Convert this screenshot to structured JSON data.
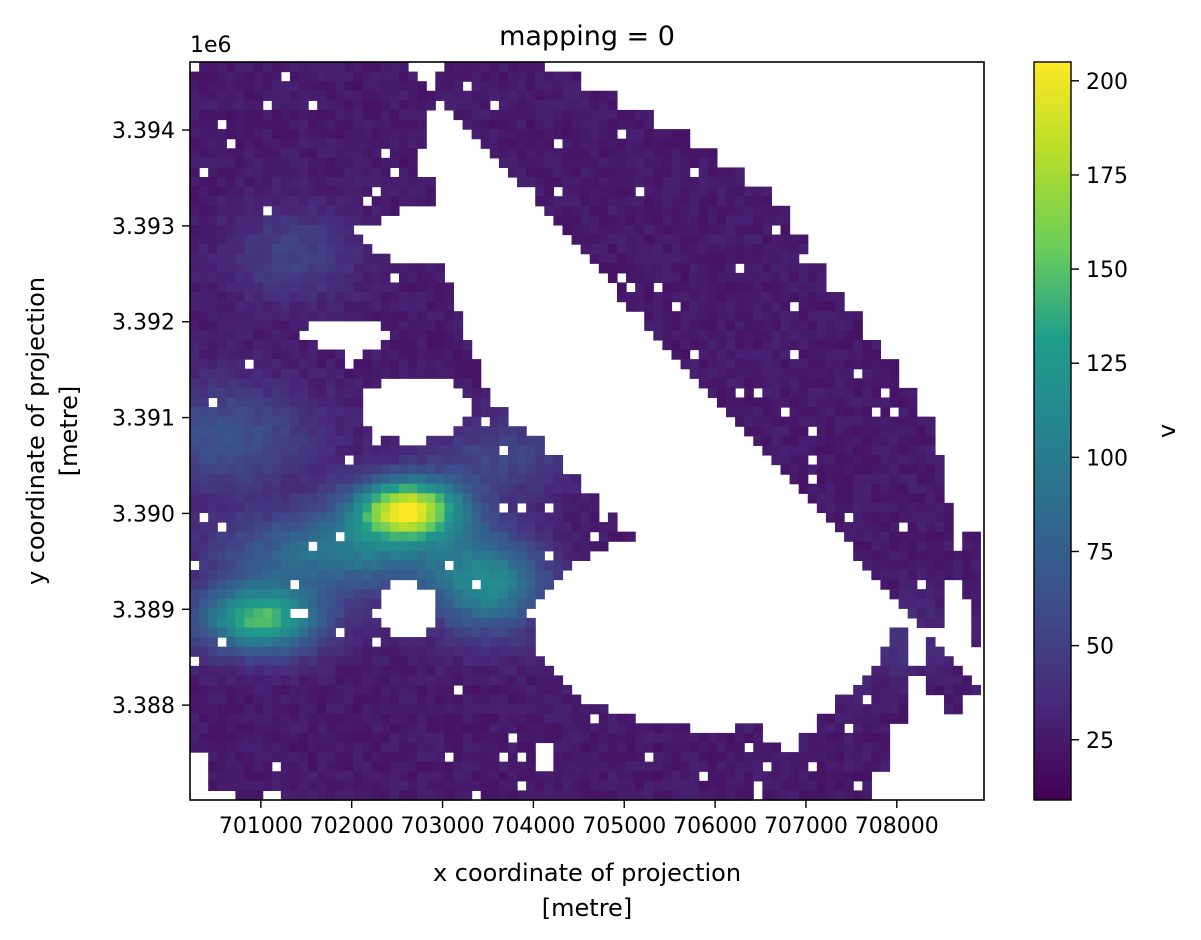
{
  "chart_data": {
    "type": "heatmap",
    "title": "mapping = 0",
    "xlabel_lines": [
      "x coordinate of projection",
      "[metre]"
    ],
    "ylabel_lines": [
      "y coordinate of projection",
      "[metre]"
    ],
    "y_offset_label": "1e6",
    "colorbar_label": "v",
    "colormap": "viridis",
    "colormap_stops": [
      "#440154",
      "#482777",
      "#3f4a8a",
      "#31678e",
      "#26838f",
      "#1f9d8a",
      "#6cce5a",
      "#b6de2b",
      "#fee825"
    ],
    "x_ticks": [
      {
        "value": 701000,
        "label": "701000"
      },
      {
        "value": 702000,
        "label": "702000"
      },
      {
        "value": 703000,
        "label": "703000"
      },
      {
        "value": 704000,
        "label": "704000"
      },
      {
        "value": 705000,
        "label": "705000"
      },
      {
        "value": 706000,
        "label": "706000"
      },
      {
        "value": 707000,
        "label": "707000"
      },
      {
        "value": 708000,
        "label": "708000"
      }
    ],
    "y_ticks": [
      {
        "value": 3.388,
        "label": "3.388"
      },
      {
        "value": 3.389,
        "label": "3.389"
      },
      {
        "value": 3.39,
        "label": "3.390"
      },
      {
        "value": 3.391,
        "label": "3.391"
      },
      {
        "value": 3.392,
        "label": "3.392"
      },
      {
        "value": 3.393,
        "label": "3.393"
      },
      {
        "value": 3.394,
        "label": "3.394"
      }
    ],
    "colorbar_ticks": [
      {
        "value": 25,
        "label": "25"
      },
      {
        "value": 50,
        "label": "50"
      },
      {
        "value": 75,
        "label": "75"
      },
      {
        "value": 100,
        "label": "100"
      },
      {
        "value": 125,
        "label": "125"
      },
      {
        "value": 150,
        "label": "150"
      },
      {
        "value": 175,
        "label": "175"
      },
      {
        "value": 200,
        "label": "200"
      }
    ],
    "xlim": [
      700220,
      708960
    ],
    "ylim": [
      3.38701,
      3.39471
    ],
    "vlim": [
      9,
      205
    ],
    "grid": false,
    "cell_x": [
      700270,
      700370,
      700470,
      700570,
      700670,
      700770,
      700870,
      700970,
      701070,
      701170,
      701270,
      701370,
      701470,
      701570,
      701670,
      701770,
      701870,
      701970,
      702070,
      702170,
      702270,
      702370,
      702470,
      702570,
      702670,
      702770,
      702870,
      702970,
      703070,
      703170,
      703270,
      703370,
      703470,
      703570,
      703670,
      703770,
      703870,
      703970,
      704070,
      704170,
      704270,
      704370,
      704470,
      704570,
      704670,
      704770,
      704870,
      704970,
      705070,
      705170,
      705270,
      705370,
      705470,
      705570,
      705670,
      705770,
      705870,
      705970,
      706070,
      706170,
      706270,
      706370,
      706470,
      706570,
      706670,
      706770,
      706870,
      706970,
      707070,
      707170,
      707270,
      707370,
      707470,
      707570,
      707670,
      707770,
      707870,
      707970,
      708070,
      708170,
      708270,
      708370,
      708470,
      708570,
      708670,
      708770,
      708870
    ],
    "cell_y": [
      3.39466,
      3.39456,
      3.39446,
      3.39436,
      3.39426,
      3.39416,
      3.39406,
      3.39396,
      3.39386,
      3.39376,
      3.39366,
      3.39356,
      3.39346,
      3.39336,
      3.39326,
      3.39316,
      3.39306,
      3.39296,
      3.39286,
      3.39276,
      3.39266,
      3.39256,
      3.39246,
      3.39236,
      3.39226,
      3.39216,
      3.39206,
      3.39196,
      3.39186,
      3.39176,
      3.39166,
      3.39156,
      3.39146,
      3.39136,
      3.39126,
      3.39116,
      3.39106,
      3.39096,
      3.39086,
      3.39076,
      3.39066,
      3.39056,
      3.39046,
      3.39036,
      3.39026,
      3.39016,
      3.39006,
      3.38996,
      3.38986,
      3.38976,
      3.38966,
      3.38956,
      3.38946,
      3.38936,
      3.38926,
      3.38916,
      3.38906,
      3.38896,
      3.38886,
      3.38876,
      3.38866,
      3.38856,
      3.38846,
      3.38836,
      3.38826,
      3.38816,
      3.38806,
      3.38796,
      3.38786,
      3.38776,
      3.38766,
      3.38756,
      3.38746,
      3.38736,
      3.38726,
      3.38716,
      3.38706
    ],
    "region_polygon": [
      [
        702610,
        3.39471
      ],
      [
        702960,
        3.39471
      ],
      [
        702960,
        3.39426
      ],
      [
        702860,
        3.39426
      ],
      [
        702860,
        3.39386
      ],
      [
        702760,
        3.39386
      ],
      [
        702760,
        3.39351
      ],
      [
        702960,
        3.39351
      ],
      [
        702960,
        3.39326
      ],
      [
        702860,
        3.39326
      ],
      [
        702860,
        3.39301
      ],
      [
        702960,
        3.39301
      ],
      [
        702960,
        3.39281
      ],
      [
        703060,
        3.39281
      ],
      [
        703060,
        3.39246
      ],
      [
        703160,
        3.39246
      ],
      [
        703160,
        3.39211
      ],
      [
        703260,
        3.39211
      ],
      [
        703260,
        3.39186
      ],
      [
        703360,
        3.39186
      ],
      [
        703360,
        3.39161
      ],
      [
        703460,
        3.39161
      ],
      [
        703460,
        3.39136
      ],
      [
        703560,
        3.39136
      ],
      [
        703560,
        3.39111
      ],
      [
        703760,
        3.39111
      ],
      [
        703760,
        3.39096
      ],
      [
        703960,
        3.39096
      ],
      [
        703960,
        3.39081
      ],
      [
        704160,
        3.39081
      ],
      [
        704160,
        3.39061
      ],
      [
        704360,
        3.39061
      ],
      [
        704360,
        3.39041
      ],
      [
        704560,
        3.39041
      ],
      [
        704560,
        3.39021
      ],
      [
        704760,
        3.39021
      ],
      [
        704760,
        3.39001
      ],
      [
        704960,
        3.39001
      ],
      [
        704960,
        3.38981
      ],
      [
        705160,
        3.38981
      ],
      [
        705160,
        3.38951
      ],
      [
        705360,
        3.38951
      ],
      [
        705360,
        3.38921
      ],
      [
        705560,
        3.38921
      ],
      [
        705560,
        3.38891
      ],
      [
        705760,
        3.38891
      ],
      [
        705760,
        3.38861
      ],
      [
        705960,
        3.38861
      ],
      [
        705960,
        3.38831
      ],
      [
        706160,
        3.38831
      ],
      [
        706160,
        3.38801
      ],
      [
        706360,
        3.38801
      ],
      [
        706360,
        3.38781
      ],
      [
        706560,
        3.38781
      ],
      [
        706560,
        3.38761
      ],
      [
        706760,
        3.38761
      ],
      [
        706760,
        3.38751
      ],
      [
        706960,
        3.38751
      ],
      [
        706960,
        3.38771
      ],
      [
        707160,
        3.38771
      ],
      [
        707160,
        3.38791
      ],
      [
        707360,
        3.38791
      ],
      [
        707360,
        3.38811
      ],
      [
        707560,
        3.38811
      ],
      [
        707560,
        3.38831
      ],
      [
        707760,
        3.38831
      ],
      [
        707760,
        3.38861
      ],
      [
        707960,
        3.38861
      ],
      [
        707960,
        3.38886
      ],
      [
        708160,
        3.38886
      ],
      [
        708160,
        3.38846
      ],
      [
        708360,
        3.38846
      ],
      [
        708360,
        3.38816
      ],
      [
        708560,
        3.38816
      ],
      [
        708560,
        3.38796
      ],
      [
        708760,
        3.38796
      ],
      [
        708760,
        3.38811
      ],
      [
        708960,
        3.38811
      ],
      [
        708960,
        3.38861
      ],
      [
        708860,
        3.38861
      ],
      [
        708860,
        3.38911
      ],
      [
        708760,
        3.38911
      ],
      [
        708760,
        3.38961
      ],
      [
        708660,
        3.38961
      ],
      [
        708660,
        3.39011
      ],
      [
        708560,
        3.39011
      ],
      [
        708560,
        3.39061
      ],
      [
        708460,
        3.39061
      ],
      [
        708460,
        3.39101
      ],
      [
        708260,
        3.39101
      ],
      [
        708260,
        3.39131
      ],
      [
        708060,
        3.39131
      ],
      [
        708060,
        3.39161
      ],
      [
        707860,
        3.39161
      ],
      [
        707860,
        3.39181
      ],
      [
        707660,
        3.39181
      ],
      [
        707660,
        3.39211
      ],
      [
        707460,
        3.39211
      ],
      [
        707460,
        3.39231
      ],
      [
        707260,
        3.39231
      ],
      [
        707260,
        3.39261
      ],
      [
        707060,
        3.39261
      ],
      [
        707060,
        3.39291
      ],
      [
        706860,
        3.39291
      ],
      [
        706860,
        3.39321
      ],
      [
        706660,
        3.39321
      ],
      [
        706660,
        3.39341
      ],
      [
        706360,
        3.39341
      ],
      [
        706360,
        3.39361
      ],
      [
        706060,
        3.39361
      ],
      [
        706060,
        3.39381
      ],
      [
        705760,
        3.39381
      ],
      [
        705760,
        3.39401
      ],
      [
        705360,
        3.39401
      ],
      [
        705360,
        3.39421
      ],
      [
        704960,
        3.39421
      ],
      [
        704960,
        3.39441
      ],
      [
        704560,
        3.39441
      ],
      [
        704560,
        3.39461
      ],
      [
        704160,
        3.39461
      ],
      [
        704160,
        3.39471
      ],
      [
        700220,
        3.39471
      ],
      [
        700220,
        3.38751
      ],
      [
        700460,
        3.38751
      ],
      [
        700460,
        3.38711
      ],
      [
        700760,
        3.38711
      ],
      [
        700760,
        3.38691
      ],
      [
        701060,
        3.38691
      ],
      [
        701060,
        3.38711
      ],
      [
        701260,
        3.38711
      ],
      [
        701260,
        3.38681
      ],
      [
        701560,
        3.38681
      ],
      [
        701560,
        3.38661
      ],
      [
        701860,
        3.38661
      ],
      [
        701860,
        3.38641
      ],
      [
        702160,
        3.38641
      ],
      [
        702160,
        3.38621
      ],
      [
        702460,
        3.38621
      ],
      [
        702460,
        3.38591
      ],
      [
        702660,
        3.38591
      ],
      [
        702660,
        3.38571
      ],
      [
        702860,
        3.38571
      ],
      [
        702860,
        3.38551
      ],
      [
        703060,
        3.38551
      ],
      [
        703060,
        3.38521
      ],
      [
        703260,
        3.38521
      ],
      [
        703260,
        3.38491
      ],
      [
        703460,
        3.38491
      ],
      [
        703460,
        3.38461
      ],
      [
        703560,
        3.38461
      ],
      [
        703560,
        3.38421
      ],
      [
        703660,
        3.38421
      ],
      [
        703660,
        3.38381
      ],
      [
        703760,
        3.38381
      ],
      [
        703760,
        3.38351
      ],
      [
        703860,
        3.38351
      ],
      [
        703860,
        3.38321
      ],
      [
        703960,
        3.38321
      ],
      [
        703960,
        3.38291
      ],
      [
        704060,
        3.38291
      ],
      [
        704060,
        3.38261
      ],
      [
        704160,
        3.38261
      ],
      [
        704160,
        3.38231
      ],
      [
        704260,
        3.38231
      ],
      [
        704260,
        3.38201
      ],
      [
        704360,
        3.38201
      ],
      [
        704360,
        3.38171
      ],
      [
        704460,
        3.38171
      ],
      [
        704460,
        3.38141
      ],
      [
        704560,
        3.38141
      ],
      [
        704560,
        3.38111
      ],
      [
        704660,
        3.38111
      ],
      [
        704660,
        3.38081
      ],
      [
        704760,
        3.38081
      ],
      [
        704760,
        3.38051
      ],
      [
        704860,
        3.38051
      ],
      [
        704860,
        3.38021
      ],
      [
        704960,
        3.38021
      ],
      [
        704960,
        3.38001
      ],
      [
        705160,
        3.38001
      ],
      [
        705160,
        3.38081
      ],
      [
        705360,
        3.38081
      ],
      [
        705360,
        3.38131
      ],
      [
        705560,
        3.38131
      ],
      [
        705560,
        3.38181
      ],
      [
        705760,
        3.38181
      ],
      [
        705760,
        3.38231
      ],
      [
        705960,
        3.38231
      ],
      [
        705960,
        3.38281
      ],
      [
        706160,
        3.38281
      ],
      [
        706160,
        3.38331
      ],
      [
        706360,
        3.38331
      ],
      [
        706360,
        3.38381
      ],
      [
        706560,
        3.38381
      ],
      [
        706560,
        3.38431
      ],
      [
        706760,
        3.38431
      ],
      [
        706760,
        3.38481
      ],
      [
        706960,
        3.38481
      ],
      [
        706960,
        3.38531
      ],
      [
        707160,
        3.38531
      ],
      [
        707160,
        3.38581
      ],
      [
        707360,
        3.38581
      ],
      [
        707360,
        3.38631
      ],
      [
        707560,
        3.38631
      ],
      [
        707560,
        3.38681
      ],
      [
        707760,
        3.38681
      ],
      [
        707760,
        3.38731
      ],
      [
        707960,
        3.38731
      ],
      [
        707960,
        3.38781
      ],
      [
        708160,
        3.38781
      ],
      [
        708160,
        3.38831
      ],
      [
        708360,
        3.38831
      ],
      [
        708360,
        3.38881
      ],
      [
        708560,
        3.38881
      ],
      [
        708560,
        3.38931
      ],
      [
        708760,
        3.38931
      ],
      [
        708760,
        3.38981
      ],
      [
        708960,
        3.38981
      ],
      [
        708960,
        3.38811
      ]
    ],
    "hotspots": [
      {
        "x": 702620,
        "y": 3.39005,
        "amp": 165,
        "sx": 420,
        "sy": 0.00022
      },
      {
        "x": 701000,
        "y": 3.3889,
        "amp": 120,
        "sx": 480,
        "sy": 0.00025
      },
      {
        "x": 703500,
        "y": 3.38925,
        "amp": 85,
        "sx": 450,
        "sy": 0.00035
      },
      {
        "x": 701900,
        "y": 3.3896,
        "amp": 70,
        "sx": 900,
        "sy": 0.0003
      },
      {
        "x": 700600,
        "y": 3.3908,
        "amp": 40,
        "sx": 700,
        "sy": 0.0004
      },
      {
        "x": 701350,
        "y": 3.3927,
        "amp": 28,
        "sx": 500,
        "sy": 0.00035
      },
      {
        "x": 706600,
        "y": 3.3882,
        "amp": 30,
        "sx": 500,
        "sy": 0.00015
      },
      {
        "x": 703700,
        "y": 3.3906,
        "amp": 30,
        "sx": 600,
        "sy": 0.0003
      },
      {
        "x": 708000,
        "y": 3.3887,
        "amp": 18,
        "sx": 400,
        "sy": 0.00025
      }
    ],
    "holes": [
      {
        "cx": 705950,
        "cy": 3.3888,
        "rx": 1950,
        "ry": 0.00105
      },
      {
        "cx": 702700,
        "cy": 3.3911,
        "rx": 600,
        "ry": 0.00035
      },
      {
        "cx": 702050,
        "cy": 3.39185,
        "rx": 300,
        "ry": 0.0002
      },
      {
        "cx": 703250,
        "cy": 3.3929,
        "rx": 1100,
        "ry": 0.00035
      },
      {
        "cx": 701700,
        "cy": 3.3919,
        "rx": 250,
        "ry": 0.00015
      },
      {
        "cx": 702600,
        "cy": 3.389,
        "rx": 320,
        "ry": 0.0003
      },
      {
        "cx": 704150,
        "cy": 3.38745,
        "rx": 120,
        "ry": 0.00015
      },
      {
        "cx": 705450,
        "cy": 3.3882,
        "rx": 350,
        "ry": 0.0002
      }
    ]
  }
}
